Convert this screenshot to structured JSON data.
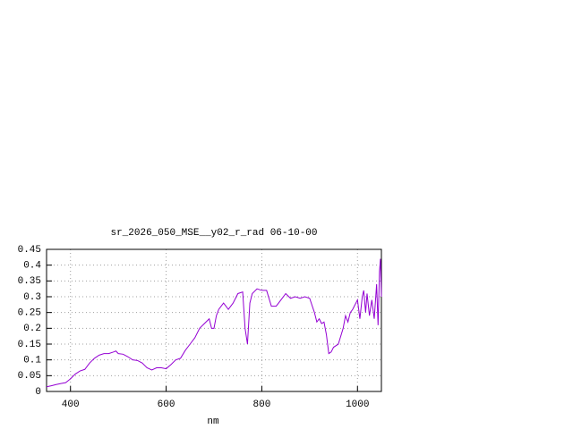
{
  "chart_data": {
    "type": "line",
    "title": "sr_2026_050_MSE__y02_r_rad 06-10-00",
    "x_label": "nm",
    "x": [
      350,
      360,
      370,
      380,
      390,
      400,
      410,
      420,
      430,
      440,
      450,
      460,
      470,
      480,
      490,
      495,
      500,
      510,
      520,
      530,
      540,
      550,
      560,
      570,
      580,
      590,
      600,
      610,
      620,
      630,
      640,
      650,
      660,
      670,
      680,
      690,
      695,
      700,
      705,
      710,
      720,
      730,
      740,
      750,
      760,
      765,
      770,
      775,
      780,
      790,
      800,
      810,
      820,
      830,
      840,
      850,
      860,
      870,
      880,
      890,
      900,
      910,
      915,
      920,
      925,
      930,
      935,
      940,
      945,
      950,
      960,
      970,
      975,
      980,
      985,
      990,
      1000,
      1005,
      1010,
      1013,
      1017,
      1020,
      1025,
      1030,
      1035,
      1040,
      1043,
      1046,
      1048,
      1050
    ],
    "series": [
      {
        "color": "#9400d3",
        "values": [
          0.015,
          0.018,
          0.022,
          0.025,
          0.028,
          0.04,
          0.055,
          0.065,
          0.07,
          0.09,
          0.105,
          0.115,
          0.12,
          0.12,
          0.125,
          0.128,
          0.12,
          0.118,
          0.11,
          0.1,
          0.098,
          0.09,
          0.075,
          0.068,
          0.075,
          0.075,
          0.072,
          0.085,
          0.1,
          0.105,
          0.13,
          0.15,
          0.17,
          0.2,
          0.215,
          0.23,
          0.2,
          0.2,
          0.24,
          0.26,
          0.28,
          0.26,
          0.28,
          0.31,
          0.315,
          0.2,
          0.15,
          0.28,
          0.31,
          0.325,
          0.32,
          0.32,
          0.27,
          0.27,
          0.29,
          0.31,
          0.295,
          0.3,
          0.295,
          0.3,
          0.295,
          0.25,
          0.22,
          0.23,
          0.215,
          0.22,
          0.18,
          0.12,
          0.125,
          0.14,
          0.15,
          0.2,
          0.24,
          0.22,
          0.25,
          0.26,
          0.29,
          0.23,
          0.3,
          0.32,
          0.25,
          0.31,
          0.24,
          0.29,
          0.23,
          0.34,
          0.21,
          0.38,
          0.42,
          0.3
        ]
      }
    ],
    "xlim": [
      350,
      1050
    ],
    "xticks": [
      400,
      600,
      800,
      1000
    ],
    "ylim": [
      0,
      0.45
    ],
    "yticks": [
      0,
      0.05,
      0.1,
      0.15,
      0.2,
      0.25,
      0.3,
      0.35,
      0.4,
      0.45
    ],
    "grid": true
  }
}
